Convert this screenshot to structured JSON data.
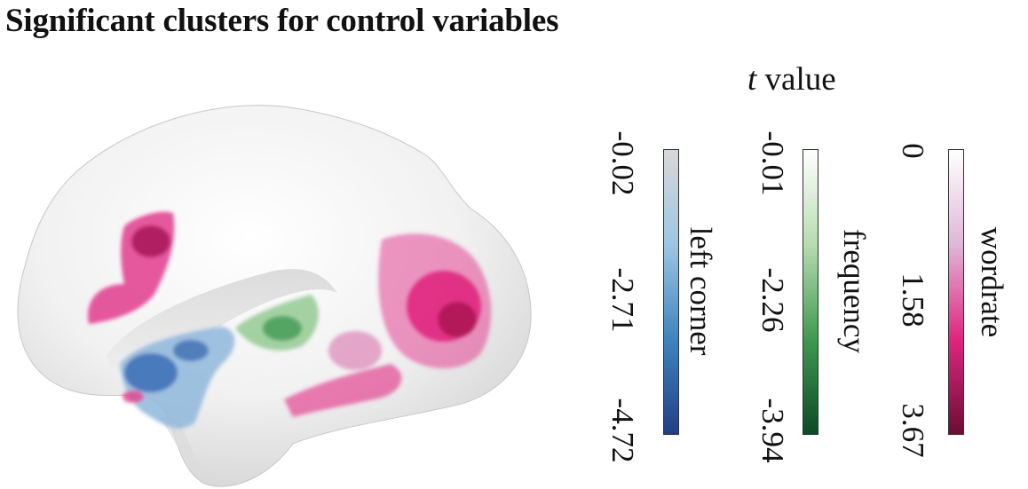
{
  "title": "Significant clusters for control variables",
  "legend_heading": {
    "italic": "t",
    "rest": " value"
  },
  "colorbars": [
    {
      "name": "left corner",
      "ticks": [
        "-0.02",
        "-2.71",
        "-4.72"
      ],
      "colors": [
        "#d8d8d8",
        "#9cc6e2",
        "#3d85c0",
        "#223f85"
      ]
    },
    {
      "name": "frequency",
      "ticks": [
        "-0.01",
        "-2.26",
        "-3.94"
      ],
      "colors": [
        "#ffffff",
        "#b6dcb0",
        "#3f9a4f",
        "#0b4a26"
      ]
    },
    {
      "name": "wordrate",
      "ticks": [
        "0",
        "1.58",
        "3.67"
      ],
      "colors": [
        "#ffffff",
        "#dfb7d7",
        "#e0257f",
        "#6b0e34"
      ]
    }
  ]
}
